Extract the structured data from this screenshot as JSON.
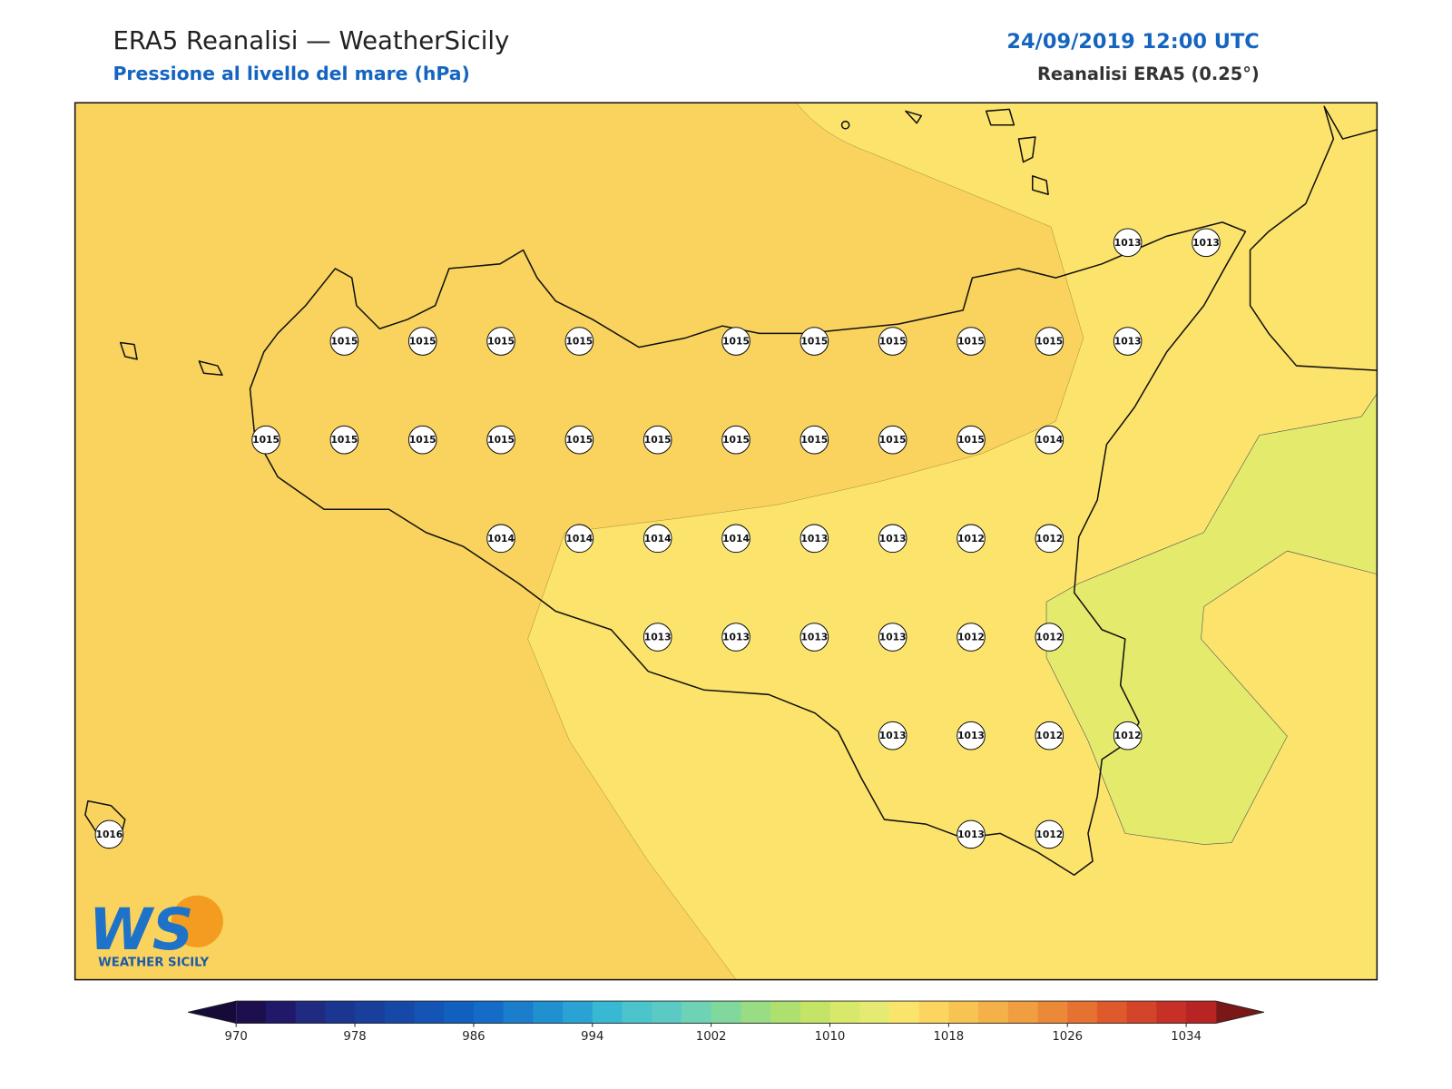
{
  "header": {
    "title": "ERA5 Reanalisi — WeatherSicily",
    "subtitle": "Pressione al livello del mare (hPa)",
    "date": "24/09/2019 12:00 UTC",
    "source": "Reanalisi ERA5 (0.25°)"
  },
  "logo": {
    "mark": "WS",
    "text": "WEATHER SICILY"
  },
  "stations": [
    [
      null,
      null,
      null,
      null,
      null,
      null,
      null,
      null,
      null,
      null,
      null,
      null,
      null,
      1013,
      1013
    ],
    [
      null,
      null,
      null,
      1015,
      1015,
      1015,
      1015,
      null,
      1015,
      1015,
      1015,
      1015,
      1015,
      1013,
      null
    ],
    [
      null,
      null,
      1015,
      1015,
      1015,
      1015,
      1015,
      1015,
      1015,
      1015,
      1015,
      1015,
      1014,
      null,
      null
    ],
    [
      null,
      null,
      null,
      null,
      null,
      1014,
      1014,
      1014,
      1014,
      1013,
      1013,
      1012,
      1012,
      null,
      null
    ],
    [
      null,
      null,
      null,
      null,
      null,
      null,
      null,
      1013,
      1013,
      1013,
      1013,
      1012,
      1012,
      null,
      null
    ],
    [
      null,
      null,
      null,
      null,
      null,
      null,
      null,
      null,
      null,
      null,
      1013,
      1013,
      1012,
      1012,
      null
    ],
    [
      1016,
      null,
      null,
      null,
      null,
      null,
      null,
      null,
      null,
      null,
      null,
      1013,
      1012,
      null,
      null
    ]
  ],
  "colorbar": {
    "lim": [
      970,
      1036
    ],
    "ticks": [
      970,
      978,
      986,
      994,
      1002,
      1010,
      1018,
      1026,
      1034
    ],
    "under": "#160b38",
    "over": "#7a1818",
    "colors": [
      "#1d0f4e",
      "#22186a",
      "#1f2a80",
      "#1a3690",
      "#183f9c",
      "#1648a8",
      "#1454b4",
      "#1260be",
      "#146cc6",
      "#1a7ecc",
      "#2090d0",
      "#2ba2d4",
      "#38b8d2",
      "#4cc4cc",
      "#5ccac4",
      "#6ed2b4",
      "#80d89c",
      "#98dc84",
      "#aee070",
      "#c4e468",
      "#d8e86a",
      "#e4ea72",
      "#fae56c",
      "#fbd560",
      "#f7c453",
      "#f3b148",
      "#f09e40",
      "#ec8938",
      "#e67232",
      "#de5a2c",
      "#d44428",
      "#c63026",
      "#b82424"
    ]
  }
}
